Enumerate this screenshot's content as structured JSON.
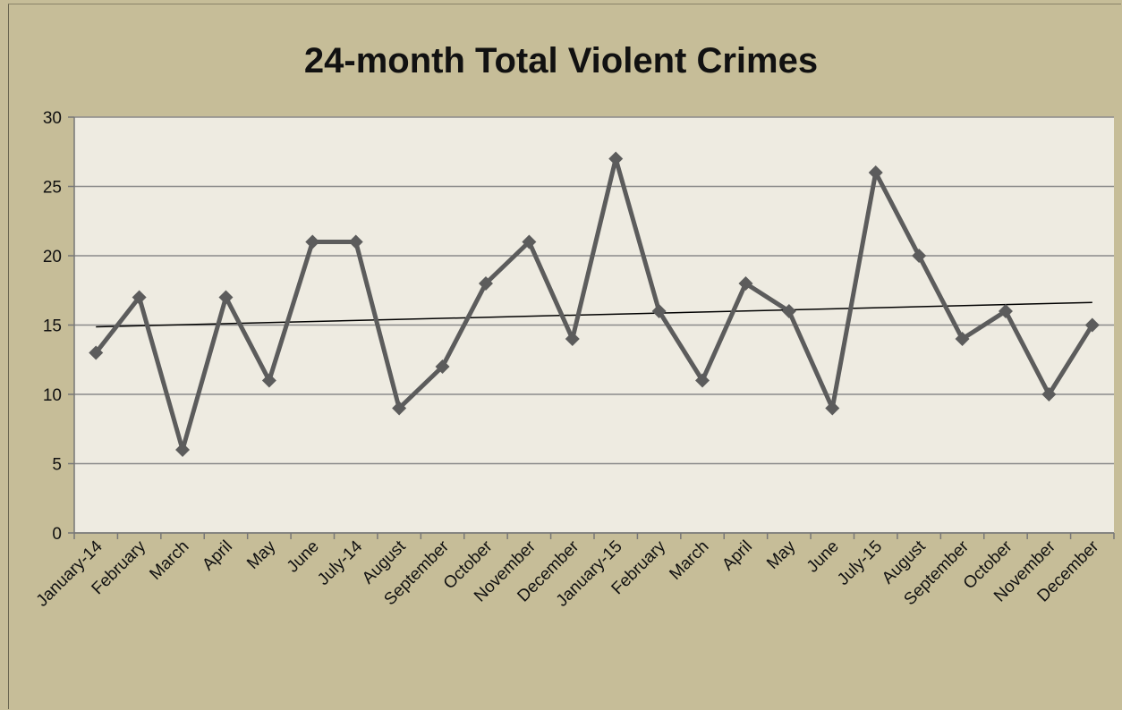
{
  "chart_data": {
    "type": "line",
    "title": "24-month Total Violent Crimes",
    "xlabel": "",
    "ylabel": "",
    "ylim": [
      0,
      30
    ],
    "yticks": [
      0,
      5,
      10,
      15,
      20,
      25,
      30
    ],
    "grid": true,
    "legend": "none",
    "categories": [
      "January-14",
      "February",
      "March",
      "April",
      "May",
      "June",
      "July-14",
      "August",
      "September",
      "October",
      "November",
      "December",
      "January-15",
      "February",
      "March",
      "April",
      "May",
      "June",
      "July-15",
      "August",
      "September",
      "October",
      "November",
      "December"
    ],
    "series": [
      {
        "values": [
          13,
          17,
          6,
          17,
          11,
          21,
          21,
          9,
          12,
          18,
          21,
          14,
          27,
          16,
          11,
          18,
          16,
          9,
          26,
          20,
          14,
          16,
          10,
          15
        ],
        "color": "#5c5c5c"
      }
    ],
    "trendline": {
      "type": "linear",
      "start": 14.87,
      "end": 16.63,
      "color": "#000000"
    },
    "colors": {
      "plot_bg": "#eeebe1",
      "outer_bg": "#c6bd98",
      "grid": "#8a8a8a"
    }
  }
}
